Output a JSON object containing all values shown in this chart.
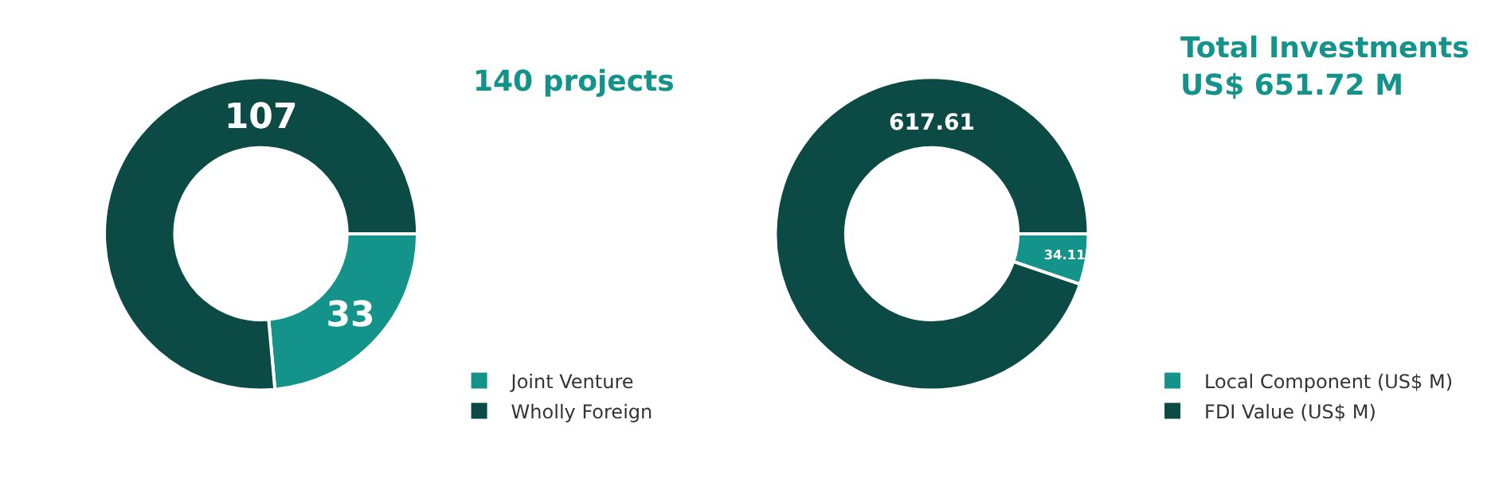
{
  "chart_data": [
    {
      "type": "donut",
      "title": "140 projects",
      "categories": [
        "Joint Venture",
        "Wholly Foreign"
      ],
      "values": [
        33,
        107
      ],
      "colors": [
        "#13938a",
        "#0b4a45"
      ],
      "data_labels": true,
      "legend": "bottom right"
    },
    {
      "type": "donut",
      "title": "Total Investments\nUS$ 651.72 M",
      "categories": [
        "Local Component (US$ M)",
        "FDI Value (US$ M)"
      ],
      "values": [
        34.11,
        617.61
      ],
      "colors": [
        "#13938a",
        "#0b4a45"
      ],
      "data_labels": true,
      "legend": "bottom right"
    }
  ]
}
